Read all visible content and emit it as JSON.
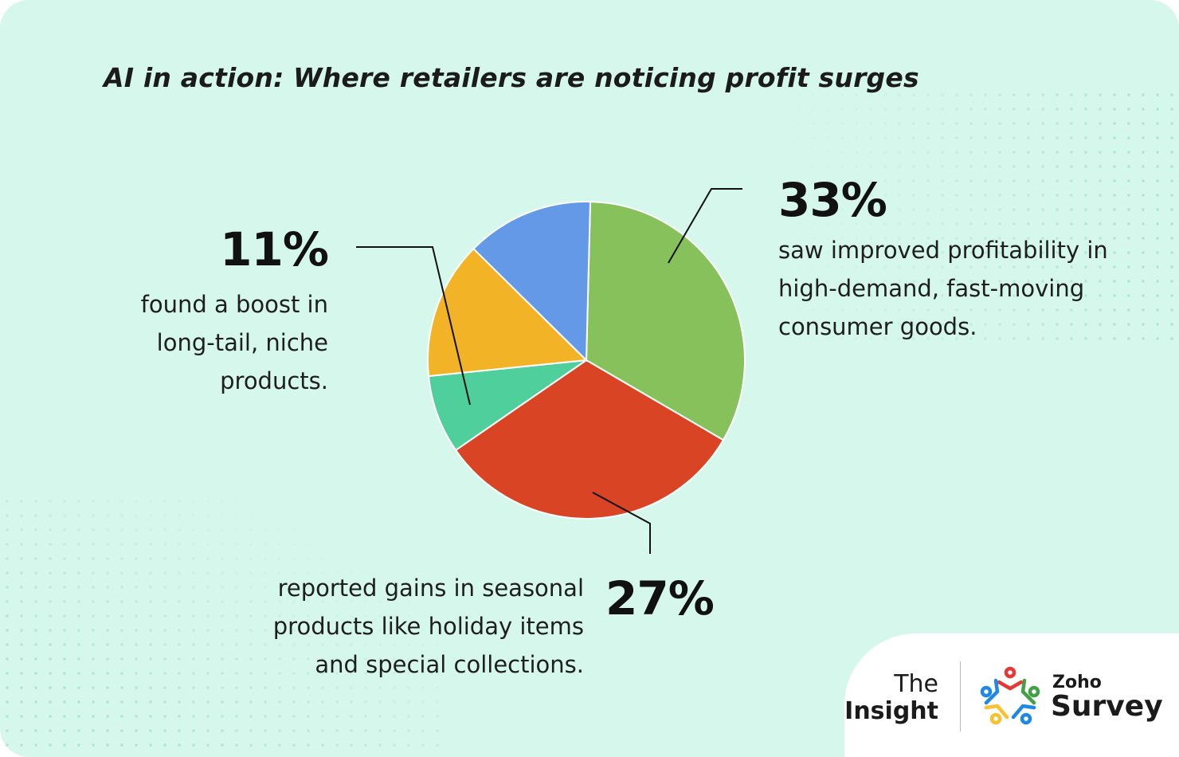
{
  "chart_data": {
    "type": "pie",
    "title": "AI in action: Where retailers are noticing profit surges",
    "slices": [
      {
        "value": 33,
        "color": "#86c15c"
      },
      {
        "value": 32,
        "color": "#d94425"
      },
      {
        "value": 8,
        "color": "#4ecf9c"
      },
      {
        "value": 14,
        "color": "#f2b426"
      },
      {
        "value": 13,
        "color": "#6399e6"
      }
    ],
    "annotations": [
      {
        "percent": "33%",
        "text": [
          "saw improved profitability in",
          "high-demand, fast-moving",
          "consumer goods."
        ]
      },
      {
        "percent": "27%",
        "text": [
          "reported gains in seasonal",
          "products like holiday items",
          "and special collections."
        ]
      },
      {
        "percent": "11%",
        "text": [
          "found a boost in",
          "long-tail, niche",
          "products."
        ]
      }
    ]
  },
  "branding": {
    "the": "The",
    "insight": "Insight",
    "zoho": "Zoho",
    "survey": "Survey",
    "logo_icon": "zoho-survey-people-icon",
    "logo_colors": [
      "#e53935",
      "#1e88e5",
      "#43a047",
      "#fbc02d"
    ]
  }
}
